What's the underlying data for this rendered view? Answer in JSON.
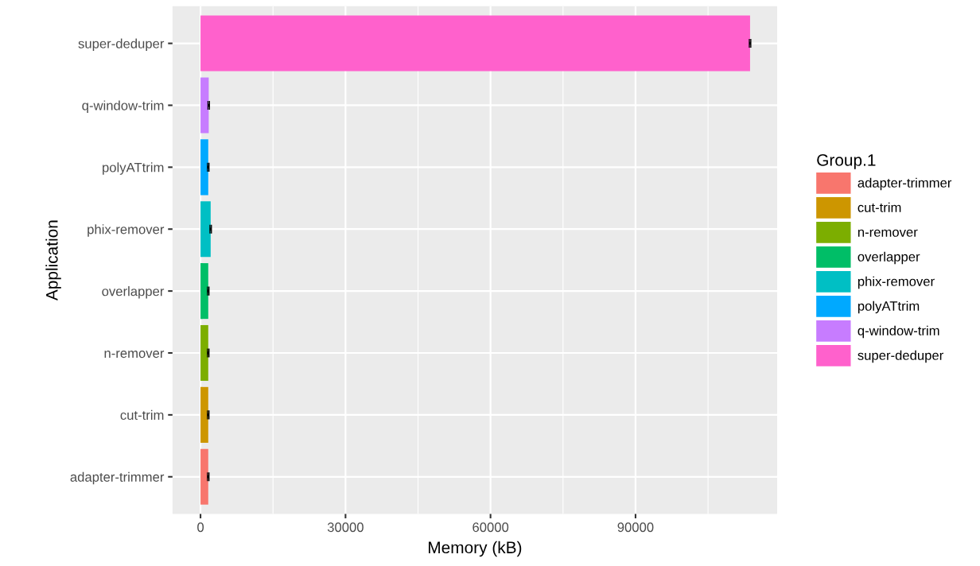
{
  "chart_data": {
    "type": "bar",
    "orientation": "horizontal",
    "xlabel": "Memory (kB)",
    "ylabel": "Application",
    "legend_title": "Group.1",
    "categories": [
      "super-deduper",
      "q-window-trim",
      "polyATtrim",
      "phix-remover",
      "overlapper",
      "n-remover",
      "cut-trim",
      "adapter-trimmer"
    ],
    "series": [
      {
        "name": "adapter-trimmer",
        "color": "#f8766d",
        "values": [
          null,
          null,
          null,
          null,
          null,
          null,
          null,
          1600
        ],
        "errors": [
          null,
          null,
          null,
          null,
          null,
          null,
          null,
          150
        ]
      },
      {
        "name": "cut-trim",
        "color": "#cd9600",
        "values": [
          null,
          null,
          null,
          null,
          null,
          null,
          1600,
          null
        ],
        "errors": [
          null,
          null,
          null,
          null,
          null,
          null,
          150,
          null
        ]
      },
      {
        "name": "n-remover",
        "color": "#7cae00",
        "values": [
          null,
          null,
          null,
          null,
          null,
          1600,
          null,
          null
        ],
        "errors": [
          null,
          null,
          null,
          null,
          null,
          150,
          null,
          null
        ]
      },
      {
        "name": "overlapper",
        "color": "#00be67",
        "values": [
          null,
          null,
          null,
          null,
          1600,
          null,
          null,
          null
        ],
        "errors": [
          null,
          null,
          null,
          null,
          150,
          null,
          null,
          null
        ]
      },
      {
        "name": "phix-remover",
        "color": "#00bfc4",
        "values": [
          null,
          null,
          null,
          2100,
          null,
          null,
          null,
          null
        ],
        "errors": [
          null,
          null,
          null,
          150,
          null,
          null,
          null,
          null
        ]
      },
      {
        "name": "polyATtrim",
        "color": "#00a9ff",
        "values": [
          null,
          null,
          1600,
          null,
          null,
          null,
          null,
          null
        ],
        "errors": [
          null,
          null,
          150,
          null,
          null,
          null,
          null,
          null
        ]
      },
      {
        "name": "q-window-trim",
        "color": "#c77cff",
        "values": [
          null,
          1700,
          null,
          null,
          null,
          null,
          null,
          null
        ],
        "errors": [
          null,
          150,
          null,
          null,
          null,
          null,
          null,
          null
        ]
      },
      {
        "name": "super-deduper",
        "color": "#ff61cc",
        "values": [
          113700,
          null,
          null,
          null,
          null,
          null,
          null,
          null
        ],
        "errors": [
          150,
          null,
          null,
          null,
          null,
          null,
          null,
          null
        ]
      }
    ],
    "xlim": [
      -5800,
      119300
    ],
    "xticks": [
      0,
      30000,
      60000,
      90000
    ],
    "grid": true,
    "legend": "right"
  }
}
